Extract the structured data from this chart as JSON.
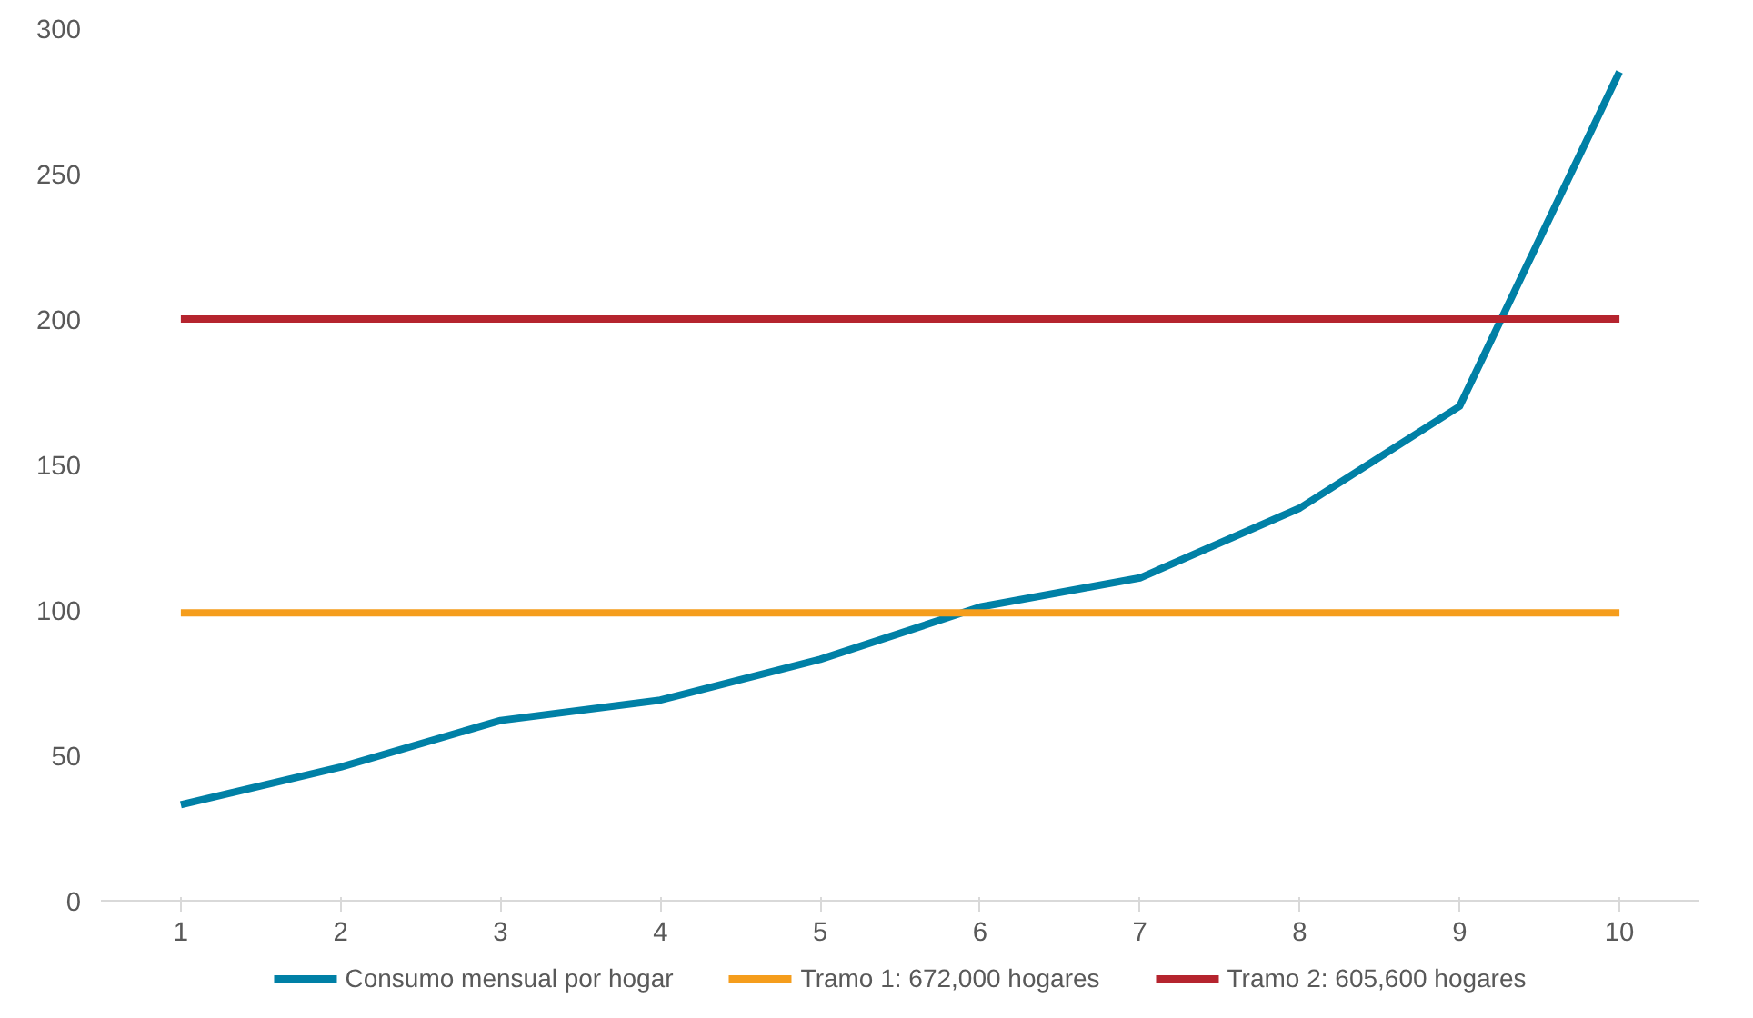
{
  "chart_data": {
    "type": "line",
    "x": [
      1,
      2,
      3,
      4,
      5,
      6,
      7,
      8,
      9,
      10
    ],
    "series": [
      {
        "name": "Consumo mensual por hogar",
        "color": "#0080a6",
        "values": [
          33,
          46,
          62,
          69,
          83,
          101,
          111,
          135,
          170,
          285
        ]
      },
      {
        "name": "Tramo 1: 672,000 hogares",
        "color": "#f59d1c",
        "values": [
          99,
          99,
          99,
          99,
          99,
          99,
          99,
          99,
          99,
          99
        ]
      },
      {
        "name": "Tramo 2: 605,600 hogares",
        "color": "#b5242e",
        "values": [
          200,
          200,
          200,
          200,
          200,
          200,
          200,
          200,
          200,
          200
        ]
      }
    ],
    "xlim": [
      0.5,
      10.5
    ],
    "xticks": [
      1,
      2,
      3,
      4,
      5,
      6,
      7,
      8,
      9,
      10
    ],
    "ylim": [
      0,
      300
    ],
    "yticks": [
      0,
      50,
      100,
      150,
      200,
      250,
      300
    ],
    "grid": false,
    "legend": "bottom",
    "marker": "none",
    "line_style": "solid"
  }
}
